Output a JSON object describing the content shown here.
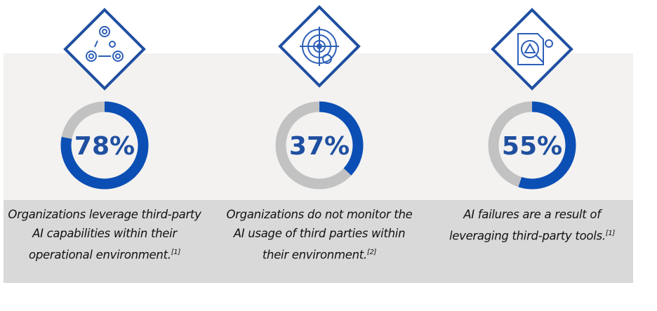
{
  "colors": {
    "accent": "#0b4fb5",
    "remainder": "#c2c2c2",
    "band": "#f3f2f1",
    "caption_band": "#d9d9d9",
    "percent_text": "#1f4fa0"
  },
  "chart_data": {
    "type": "donut",
    "items": [
      {
        "value": 78,
        "label": "78%",
        "icon": "gears-link-icon",
        "caption": "Organizations leverage third-party AI capabilities within their operational environment.",
        "ref": "[1]"
      },
      {
        "value": 37,
        "label": "37%",
        "icon": "radar-target-icon",
        "caption": "Organizations do not monitor the AI usage of third parties within their environment.",
        "ref": "[2]"
      },
      {
        "value": 55,
        "label": "55%",
        "icon": "document-warning-icon",
        "caption": "AI failures are a result of leveraging third-party tools.",
        "ref": "[1]"
      }
    ]
  }
}
